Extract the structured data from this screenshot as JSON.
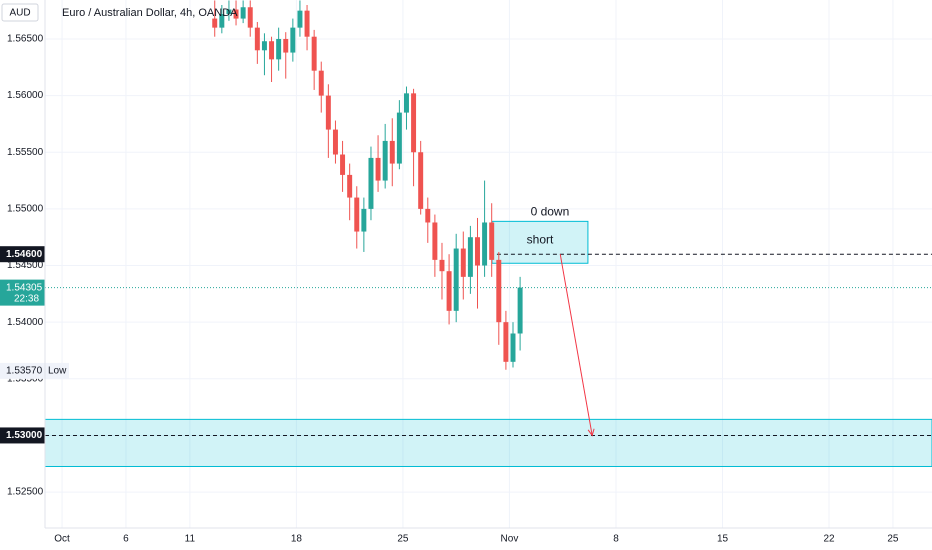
{
  "chart_data": {
    "type": "candlestick",
    "title": "Euro / Australian Dollar, 4h, OANDA",
    "currency": "AUD",
    "x": [
      43,
      45,
      47,
      49,
      51,
      53,
      55,
      57,
      59,
      61,
      63,
      65,
      67,
      69,
      71,
      73,
      75,
      77,
      79,
      81,
      83,
      85,
      87,
      89,
      91,
      93,
      95,
      97,
      99,
      101,
      103,
      105,
      107,
      109,
      111,
      113,
      115,
      117,
      119,
      121,
      123,
      125,
      127,
      129
    ],
    "open": [
      1.5668,
      1.566,
      1.5672,
      1.5676,
      1.5668,
      1.5678,
      1.566,
      1.564,
      1.5648,
      1.5632,
      1.565,
      1.5638,
      1.566,
      1.5675,
      1.5652,
      1.5622,
      1.56,
      1.557,
      1.5548,
      1.553,
      1.551,
      1.548,
      1.55,
      1.5545,
      1.5525,
      1.556,
      1.554,
      1.5585,
      1.5602,
      1.555,
      1.55,
      1.5488,
      1.5455,
      1.5445,
      1.541,
      1.5465,
      1.544,
      1.5475,
      1.545,
      1.5488,
      1.5455,
      1.54,
      1.5365,
      1.539
    ],
    "high": [
      1.5684,
      1.568,
      1.5684,
      1.5684,
      1.5684,
      1.5684,
      1.5665,
      1.5655,
      1.5652,
      1.566,
      1.5656,
      1.5668,
      1.5684,
      1.568,
      1.5658,
      1.563,
      1.561,
      1.5578,
      1.556,
      1.554,
      1.552,
      1.551,
      1.5555,
      1.5565,
      1.5575,
      1.558,
      1.5596,
      1.5608,
      1.5606,
      1.556,
      1.551,
      1.5495,
      1.547,
      1.546,
      1.5478,
      1.548,
      1.5485,
      1.5492,
      1.5525,
      1.5505,
      1.5462,
      1.541,
      1.54,
      1.544
    ],
    "low": [
      1.5652,
      1.5655,
      1.5666,
      1.5662,
      1.5664,
      1.5652,
      1.5628,
      1.5618,
      1.5612,
      1.5622,
      1.5615,
      1.563,
      1.5652,
      1.564,
      1.5605,
      1.5585,
      1.5545,
      1.554,
      1.5515,
      1.549,
      1.5465,
      1.5462,
      1.549,
      1.5515,
      1.5518,
      1.552,
      1.5535,
      1.557,
      1.552,
      1.5495,
      1.547,
      1.544,
      1.542,
      1.5398,
      1.54,
      1.542,
      1.5425,
      1.5412,
      1.544,
      1.544,
      1.538,
      1.5358,
      1.536,
      1.5375
    ],
    "close": [
      1.566,
      1.5672,
      1.5676,
      1.5668,
      1.5678,
      1.566,
      1.564,
      1.5648,
      1.5632,
      1.565,
      1.5638,
      1.566,
      1.5675,
      1.5652,
      1.5622,
      1.56,
      1.557,
      1.5548,
      1.553,
      1.551,
      1.548,
      1.55,
      1.5545,
      1.5525,
      1.556,
      1.554,
      1.5585,
      1.5602,
      1.555,
      1.55,
      1.5488,
      1.5455,
      1.5445,
      1.541,
      1.5465,
      1.544,
      1.5475,
      1.545,
      1.5488,
      1.5455,
      1.54,
      1.5365,
      1.539,
      1.54305
    ],
    "up_color": "#26a69a",
    "down_color": "#ef5350",
    "xlim": [
      -4.8,
      245
    ],
    "xticks": [
      {
        "value": 0,
        "label": "Oct"
      },
      {
        "value": 18,
        "label": "6"
      },
      {
        "value": 36,
        "label": "11"
      },
      {
        "value": 66,
        "label": "18"
      },
      {
        "value": 96,
        "label": "25"
      },
      {
        "value": 126,
        "label": "Nov"
      },
      {
        "value": 156,
        "label": "8"
      },
      {
        "value": 186,
        "label": "15"
      },
      {
        "value": 216,
        "label": "22"
      },
      {
        "value": 234,
        "label": "25"
      }
    ],
    "ylim": [
      1.52183,
      1.56844
    ],
    "yticks": [
      {
        "value": 1.525,
        "label": "1.52500"
      },
      {
        "value": 1.53,
        "label": "1.53000"
      },
      {
        "value": 1.535,
        "label": "1.53500"
      },
      {
        "value": 1.54,
        "label": "1.54000"
      },
      {
        "value": 1.545,
        "label": "1.54500"
      },
      {
        "value": 1.55,
        "label": "1.55000"
      },
      {
        "value": 1.555,
        "label": "1.55500"
      },
      {
        "value": 1.56,
        "label": "1.56000"
      },
      {
        "value": 1.565,
        "label": "1.56500"
      }
    ],
    "grid": true,
    "last_price": {
      "value": 1.54305,
      "label": "1.54305",
      "countdown": "22:38",
      "color": "#26a69a"
    },
    "low_marker": {
      "value": 1.5357,
      "label": "1.53570",
      "text": "Low"
    },
    "levels": [
      {
        "value": 1.546,
        "label": "1.54600",
        "from": 120.5
      },
      {
        "value": 1.53,
        "label": "1.53000"
      }
    ],
    "zone": {
      "y": [
        1.52726,
        1.53142
      ],
      "color": "#00bcd4"
    },
    "short_box": {
      "x": [
        121.1,
        148.1
      ],
      "y": [
        1.5452,
        1.5489
      ],
      "text": "short"
    },
    "note": {
      "text": "0 down",
      "x": 137.4,
      "y": 1.5497
    },
    "arrow": {
      "x": [
        140.3,
        149.3
      ],
      "y": [
        1.546,
        1.53
      ],
      "color": "#f23645"
    }
  }
}
